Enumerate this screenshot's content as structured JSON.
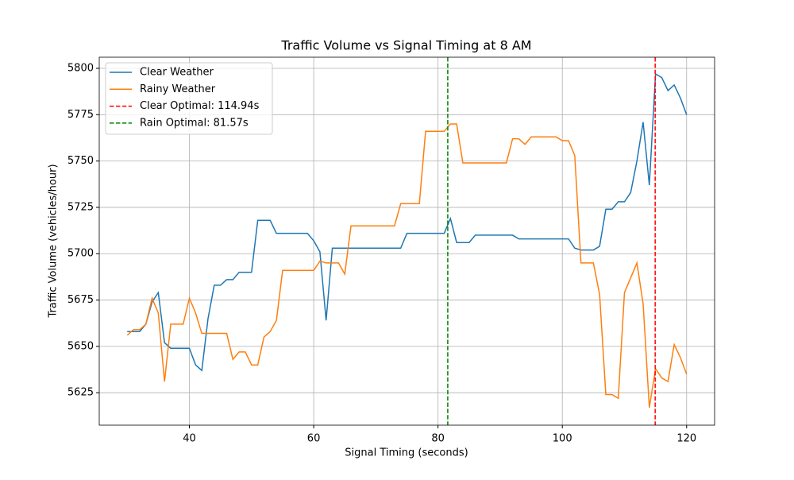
{
  "chart_data": {
    "type": "line",
    "title": "Traffic Volume vs Signal Timing at 8 AM",
    "x_label": "Signal Timing (seconds)",
    "y_label": "Traffic Volume (vehicles/hour)",
    "x": [
      30,
      31,
      32,
      33,
      34,
      35,
      36,
      37,
      38,
      39,
      40,
      41,
      42,
      43,
      44,
      45,
      46,
      47,
      48,
      49,
      50,
      51,
      52,
      53,
      54,
      55,
      56,
      57,
      58,
      59,
      60,
      61,
      62,
      63,
      64,
      65,
      66,
      67,
      68,
      69,
      70,
      71,
      72,
      73,
      74,
      75,
      76,
      77,
      78,
      79,
      80,
      81,
      82,
      83,
      84,
      85,
      86,
      87,
      88,
      89,
      90,
      91,
      92,
      93,
      94,
      95,
      96,
      97,
      98,
      99,
      100,
      101,
      102,
      103,
      104,
      105,
      106,
      107,
      108,
      109,
      110,
      111,
      112,
      113,
      114,
      115,
      116,
      117,
      118,
      119,
      120
    ],
    "series": [
      {
        "name": "Clear Weather",
        "color": "#1f77b4",
        "values": [
          5658,
          5658,
          5658,
          5662,
          5674,
          5679,
          5652,
          5649,
          5649,
          5649,
          5649,
          5640,
          5637,
          5665,
          5683,
          5683,
          5686,
          5686,
          5690,
          5690,
          5690,
          5718,
          5718,
          5718,
          5711,
          5711,
          5711,
          5711,
          5711,
          5711,
          5707,
          5701,
          5664,
          5703,
          5703,
          5703,
          5703,
          5703,
          5703,
          5703,
          5703,
          5703,
          5703,
          5703,
          5703,
          5711,
          5711,
          5711,
          5711,
          5711,
          5711,
          5711,
          5719,
          5706,
          5706,
          5706,
          5710,
          5710,
          5710,
          5710,
          5710,
          5710,
          5710,
          5708,
          5708,
          5708,
          5708,
          5708,
          5708,
          5708,
          5708,
          5708,
          5703,
          5702,
          5702,
          5702,
          5704,
          5724,
          5724,
          5728,
          5728,
          5733,
          5750,
          5771,
          5737,
          5797,
          5795,
          5788,
          5791,
          5784,
          5775
        ]
      },
      {
        "name": "Rainy Weather",
        "color": "#ff7f0e",
        "values": [
          5656,
          5659,
          5659,
          5662,
          5676,
          5668,
          5631,
          5662,
          5662,
          5662,
          5676,
          5668,
          5657,
          5657,
          5657,
          5657,
          5657,
          5643,
          5647,
          5647,
          5640,
          5640,
          5655,
          5658,
          5664,
          5691,
          5691,
          5691,
          5691,
          5691,
          5691,
          5696,
          5695,
          5695,
          5695,
          5689,
          5715,
          5715,
          5715,
          5715,
          5715,
          5715,
          5715,
          5715,
          5727,
          5727,
          5727,
          5727,
          5766,
          5766,
          5766,
          5766,
          5770,
          5770,
          5749,
          5749,
          5749,
          5749,
          5749,
          5749,
          5749,
          5749,
          5762,
          5762,
          5759,
          5763,
          5763,
          5763,
          5763,
          5763,
          5761,
          5761,
          5753,
          5695,
          5695,
          5695,
          5678,
          5624,
          5624,
          5622,
          5679,
          5687,
          5695,
          5673,
          5617,
          5638,
          5633,
          5631,
          5651,
          5644,
          5635
        ]
      }
    ],
    "vlines": [
      {
        "name": "Clear Optimal: 114.94s",
        "x": 114.94,
        "color": "#ff0000"
      },
      {
        "name": "Rain Optimal: 81.57s",
        "x": 81.57,
        "color": "#008000"
      }
    ],
    "xlim": [
      25.5,
      124.5
    ],
    "ylim": [
      5607.5,
      5806
    ],
    "xticks": [
      40,
      60,
      80,
      100,
      120
    ],
    "yticks": [
      5625,
      5650,
      5675,
      5700,
      5725,
      5750,
      5775,
      5800
    ],
    "grid": true,
    "legend": "upper left"
  }
}
